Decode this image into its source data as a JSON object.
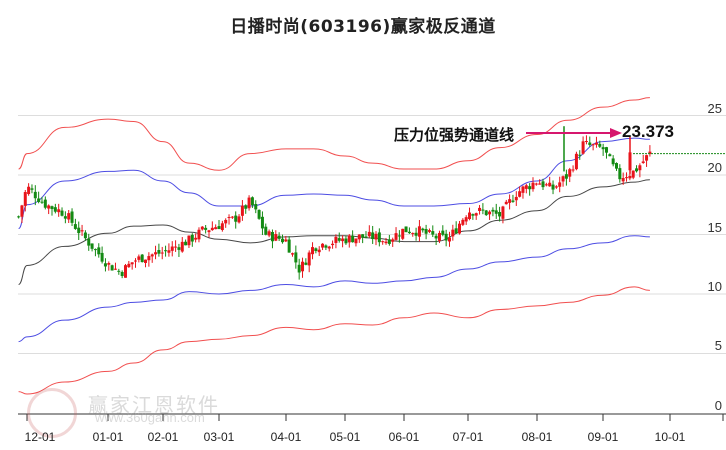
{
  "title": "日播时尚(603196)赢家极反通道",
  "annotation": {
    "label": "压力位强势通道线",
    "value": "23.373",
    "arrow_color": "#d6166e"
  },
  "watermark": {
    "brand": "赢家江恩软件",
    "url": "www.360gann.com",
    "logo_chars": "江赢恩家"
  },
  "colors": {
    "up_candle": "#e8141b",
    "down_candle": "#138a13",
    "outer_band": "#f03c3c",
    "middle_band": "#3a3ae0",
    "base_line": "#333333",
    "dashed_level": "#1a8a1a",
    "grid": "#dddddd"
  },
  "chart_data": {
    "type": "candlestick",
    "title": "日播时尚(603196)赢家极反通道",
    "xlabel": "",
    "ylabel": "",
    "ylim": [
      0,
      27
    ],
    "grid": true,
    "y_ticks": [
      0,
      5,
      10,
      15,
      20,
      25
    ],
    "x_ticks": [
      "12-01",
      "01-01",
      "02-01",
      "03-01",
      "04-01",
      "05-01",
      "06-01",
      "07-01",
      "08-01",
      "09-01",
      "10-01"
    ],
    "annotations": [
      {
        "text": "压力位强势通道线",
        "value": 23.373,
        "type": "arrow"
      },
      {
        "text": "current level dashed",
        "value": 21.8,
        "type": "hline"
      }
    ],
    "series": [
      {
        "name": "upper_red_band",
        "x": [
          "11-25",
          "12-01",
          "12-15",
          "01-01",
          "01-15",
          "02-01",
          "02-15",
          "03-01",
          "03-15",
          "04-01",
          "04-15",
          "05-01",
          "05-15",
          "06-01",
          "06-15",
          "07-01",
          "07-15",
          "08-01",
          "08-15",
          "09-01",
          "09-15",
          "09-22"
        ],
        "values": [
          20.5,
          21.8,
          24.0,
          24.7,
          24.5,
          22.8,
          21.0,
          20.4,
          21.8,
          22.2,
          22.2,
          21.6,
          21.0,
          20.5,
          20.5,
          21.2,
          22.3,
          23.4,
          24.6,
          25.7,
          26.3,
          26.5
        ]
      },
      {
        "name": "middle_blue_upper",
        "x": [
          "11-25",
          "12-01",
          "12-15",
          "01-01",
          "01-15",
          "02-01",
          "02-15",
          "03-01",
          "03-15",
          "04-01",
          "04-15",
          "05-01",
          "05-15",
          "06-01",
          "06-15",
          "07-01",
          "07-15",
          "08-01",
          "08-15",
          "09-01",
          "09-15",
          "09-22"
        ],
        "values": [
          15.5,
          17.5,
          19.5,
          20.3,
          20.4,
          19.5,
          18.5,
          17.4,
          17.4,
          18.3,
          18.4,
          18.3,
          17.9,
          17.4,
          17.4,
          17.6,
          18.4,
          19.5,
          21.2,
          22.8,
          23.1,
          23.0
        ]
      },
      {
        "name": "base_black",
        "x": [
          "11-25",
          "12-01",
          "12-15",
          "01-01",
          "01-15",
          "02-01",
          "02-15",
          "03-01",
          "03-15",
          "04-01",
          "04-15",
          "05-01",
          "05-15",
          "06-01",
          "06-15",
          "07-01",
          "07-15",
          "08-01",
          "08-15",
          "09-01",
          "09-15",
          "09-22"
        ],
        "values": [
          10.8,
          12.4,
          14.0,
          15.1,
          15.7,
          15.8,
          15.2,
          14.6,
          14.3,
          14.8,
          14.9,
          14.9,
          14.7,
          14.4,
          14.4,
          15.3,
          16.2,
          17.0,
          18.2,
          19.0,
          19.4,
          19.6
        ]
      },
      {
        "name": "lower_blue_band",
        "x": [
          "11-25",
          "12-01",
          "12-15",
          "01-01",
          "01-15",
          "02-01",
          "02-15",
          "03-01",
          "03-15",
          "04-01",
          "04-15",
          "05-01",
          "05-15",
          "06-01",
          "06-15",
          "07-01",
          "07-15",
          "08-01",
          "08-15",
          "09-01",
          "09-15",
          "09-22"
        ],
        "values": [
          6.0,
          6.4,
          7.8,
          8.9,
          9.3,
          9.5,
          10.2,
          10.0,
          10.3,
          10.8,
          10.6,
          11.1,
          10.9,
          11.1,
          11.4,
          12.1,
          12.7,
          13.1,
          13.8,
          14.3,
          14.9,
          14.8
        ]
      },
      {
        "name": "lower_red_band",
        "x": [
          "11-25",
          "12-01",
          "12-15",
          "01-01",
          "01-15",
          "02-01",
          "02-15",
          "03-01",
          "03-15",
          "04-01",
          "04-15",
          "05-01",
          "05-15",
          "06-01",
          "06-15",
          "07-01",
          "07-15",
          "08-01",
          "08-15",
          "09-01",
          "09-15",
          "09-22"
        ],
        "values": [
          1.8,
          1.6,
          2.6,
          3.5,
          4.2,
          5.3,
          6.0,
          6.2,
          6.5,
          7.2,
          7.0,
          7.5,
          7.4,
          8.0,
          8.4,
          8.0,
          8.7,
          9.0,
          9.3,
          9.9,
          10.6,
          10.3
        ]
      },
      {
        "name": "price_candles_close",
        "x": [
          "11-25",
          "12-01",
          "12-08",
          "12-15",
          "12-22",
          "01-01",
          "01-08",
          "01-15",
          "01-22",
          "02-01",
          "02-08",
          "02-15",
          "02-22",
          "03-01",
          "03-08",
          "03-15",
          "03-22",
          "04-01",
          "04-08",
          "04-15",
          "04-22",
          "05-01",
          "05-08",
          "05-15",
          "05-22",
          "06-01",
          "06-08",
          "06-15",
          "06-22",
          "07-01",
          "07-08",
          "07-15",
          "07-22",
          "08-01",
          "08-08",
          "08-15",
          "08-22",
          "09-01",
          "09-08",
          "09-15",
          "09-22"
        ],
        "values": [
          16.5,
          19.0,
          17.5,
          16.8,
          14.8,
          12.5,
          11.8,
          12.8,
          13.2,
          13.5,
          14.0,
          14.5,
          15.3,
          15.8,
          16.3,
          17.8,
          15.0,
          14.5,
          12.0,
          14.0,
          14.3,
          14.6,
          14.8,
          14.8,
          14.5,
          15.4,
          15.3,
          14.8,
          14.6,
          17.0,
          16.9,
          16.6,
          18.5,
          19.5,
          18.8,
          20.0,
          22.6,
          22.2,
          19.8,
          20.3,
          21.8
        ]
      }
    ]
  },
  "y_axis": {
    "ticks": [
      "25",
      "20",
      "15",
      "10",
      "5",
      "0"
    ]
  },
  "x_axis": {
    "ticks": [
      "12-01",
      "01-01",
      "02-01",
      "03-01",
      "04-01",
      "05-01",
      "06-01",
      "07-01",
      "08-01",
      "09-01",
      "10-01"
    ]
  }
}
